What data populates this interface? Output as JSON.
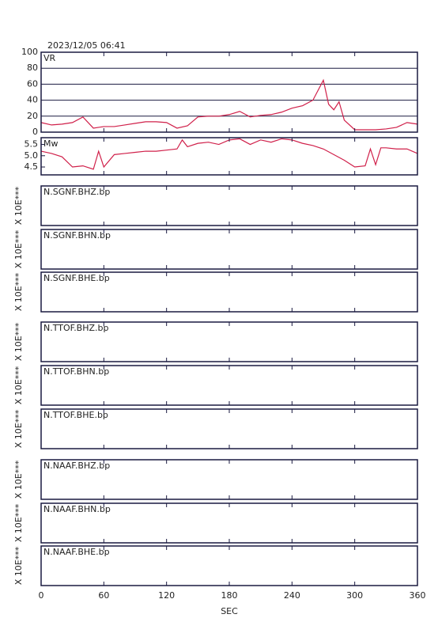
{
  "date": "2023/12/05 06:41",
  "x_axis": {
    "label": "SEC",
    "xlim": [
      0,
      360
    ],
    "xticks": [
      0,
      60,
      120,
      180,
      240,
      300,
      360
    ]
  },
  "chart_data": [
    {
      "type": "line",
      "title": "VR",
      "color": "#d0204a",
      "grid": true,
      "ylim": [
        0,
        100
      ],
      "yticks": [
        0,
        20,
        40,
        60,
        80,
        100
      ],
      "x": [
        0,
        10,
        20,
        30,
        40,
        50,
        60,
        70,
        80,
        90,
        100,
        110,
        120,
        130,
        140,
        150,
        160,
        170,
        180,
        190,
        200,
        210,
        220,
        230,
        240,
        250,
        260,
        270,
        275,
        280,
        285,
        290,
        300,
        310,
        320,
        330,
        340,
        350,
        360
      ],
      "values": [
        12,
        9,
        10,
        12,
        19,
        5,
        7,
        7,
        9,
        11,
        13,
        13,
        12,
        5,
        8,
        19,
        20,
        20,
        22,
        26,
        19,
        21,
        22,
        25,
        30,
        33,
        40,
        65,
        35,
        28,
        38,
        15,
        3,
        3,
        3,
        4,
        6,
        12,
        10
      ]
    },
    {
      "type": "line",
      "title": "Mw",
      "color": "#d0204a",
      "grid": false,
      "ylim": [
        4.15,
        5.8
      ],
      "yticks": [
        {
          "value": 4.5,
          "label": "4.5"
        },
        {
          "value": 5,
          "label": "5.0"
        },
        {
          "value": 5.5,
          "label": "5.5"
        }
      ],
      "x": [
        0,
        10,
        20,
        30,
        40,
        50,
        55,
        60,
        70,
        80,
        90,
        100,
        110,
        120,
        130,
        135,
        140,
        150,
        160,
        170,
        180,
        190,
        200,
        210,
        220,
        230,
        240,
        250,
        260,
        270,
        280,
        290,
        300,
        310,
        315,
        320,
        325,
        330,
        340,
        350,
        360
      ],
      "values": [
        5.2,
        5.1,
        4.95,
        4.5,
        4.55,
        4.4,
        5.2,
        4.5,
        5.05,
        5.1,
        5.15,
        5.2,
        5.2,
        5.25,
        5.3,
        5.7,
        5.4,
        5.55,
        5.6,
        5.5,
        5.7,
        5.75,
        5.5,
        5.7,
        5.6,
        5.75,
        5.7,
        5.55,
        5.45,
        5.3,
        5.05,
        4.8,
        4.5,
        4.55,
        5.3,
        4.6,
        5.35,
        5.35,
        5.3,
        5.3,
        5.1
      ]
    }
  ],
  "traces": [
    {
      "label": "N.SGNF.BHZ.bp",
      "ylabel": "X 10E***"
    },
    {
      "label": "N.SGNF.BHN.bp",
      "ylabel": "X 10E***"
    },
    {
      "label": "N.SGNF.BHE.bp",
      "ylabel": "X 10E***"
    },
    {
      "label": "N.TTOF.BHZ.bp",
      "ylabel": "X 10E***"
    },
    {
      "label": "N.TTOF.BHN.bp",
      "ylabel": "X 10E***"
    },
    {
      "label": "N.TTOF.BHE.bp",
      "ylabel": "X 10E***"
    },
    {
      "label": "N.NAAF.BHZ.bp",
      "ylabel": "X 10E***"
    },
    {
      "label": "N.NAAF.BHN.bp",
      "ylabel": "X 10E***"
    },
    {
      "label": "N.NAAF.BHE.bp",
      "ylabel": "X 10E***"
    }
  ]
}
